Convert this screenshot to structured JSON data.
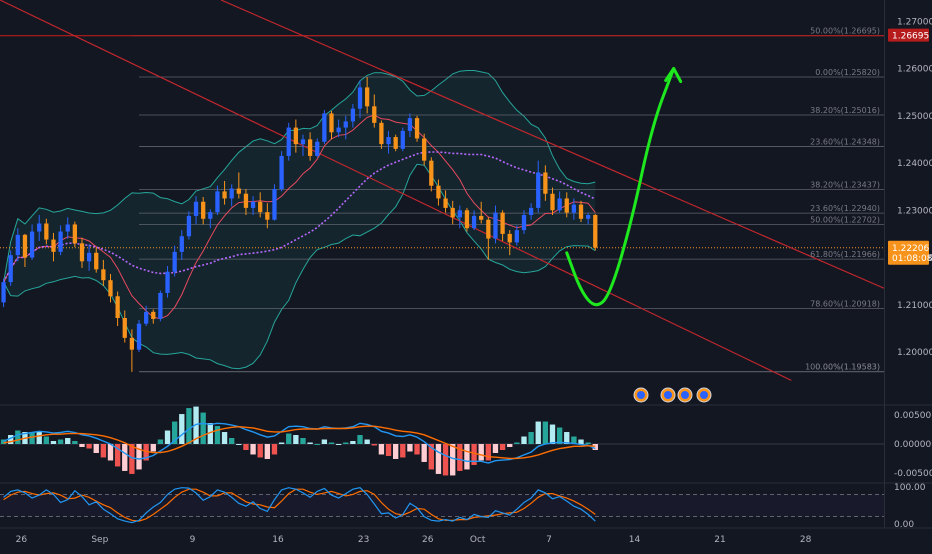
{
  "colors": {
    "background": "#131722",
    "grid": "#2a2e39",
    "candle_up": "#2962ff",
    "candle_down": "#f7931a",
    "bollinger": "#26a69a",
    "bollinger_fill": "rgba(38,166,154,0.10)",
    "ma_fast": "#e84a5f",
    "ma_slow": "#b668ff",
    "channel": "#c0272d",
    "resistance": "#b71c1c",
    "arrow": "#1ee81e",
    "fib_line": "#787b86",
    "macd_line": "#2196f3",
    "signal_line": "#ff6d00",
    "hist_pos": "#b2ebf2",
    "hist_neg": "#ffcdd2",
    "stoch_k": "#2196f3",
    "stoch_d": "#ff6d00",
    "current_price_bg": "#f7931a",
    "resistance_label_bg": "#b71c1c"
  },
  "icons": [
    "event-flag-icon",
    "us-flag-icon",
    "earnings-icon"
  ],
  "chart_data": [
    {
      "type": "candlestick",
      "name": "price",
      "ylim": [
        1.189,
        1.2745
      ],
      "y_ticks": [
        "1.27000",
        "1.26000",
        "1.25000",
        "1.24000",
        "1.23000",
        "1.22000",
        "1.21000",
        "1.20000"
      ],
      "x_range": [
        0,
        124
      ],
      "x_ticks": [
        {
          "label": "26",
          "x": 3
        },
        {
          "label": "Sep",
          "x": 14
        },
        {
          "label": "9",
          "x": 27
        },
        {
          "label": "16",
          "x": 39
        },
        {
          "label": "23",
          "x": 51
        },
        {
          "label": "26",
          "x": 60
        },
        {
          "label": "Oct",
          "x": 67
        },
        {
          "label": "7",
          "x": 77
        },
        {
          "label": "14",
          "x": 89
        },
        {
          "label": "21",
          "x": 101
        },
        {
          "label": "28",
          "x": 113
        }
      ],
      "current_price": {
        "value": 1.22206,
        "label": "1.22206",
        "countdown": "01:08:08"
      },
      "resistance": {
        "value": 1.26695,
        "label": "1.26695"
      },
      "fib_levels": [
        {
          "label": "50.00%(1.26695)",
          "value": 1.26695,
          "x_from": 18
        },
        {
          "label": "0.00%(1.25820)",
          "value": 1.2582,
          "x_from": 19
        },
        {
          "label": "38.20%(1.25016)",
          "value": 1.25016,
          "x_from": 19
        },
        {
          "label": "23.60%(1.24348)",
          "value": 1.24348,
          "x_from": 19
        },
        {
          "label": "38.20%(1.23437)",
          "value": 1.23437,
          "x_from": 19
        },
        {
          "label": "23.60%(1.22940)",
          "value": 1.2294,
          "x_from": 19
        },
        {
          "label": "50.00%(1.22702)",
          "value": 1.22702,
          "x_from": 19
        },
        {
          "label": "61.80%(1.21966)",
          "value": 1.21966,
          "x_from": 19
        },
        {
          "label": "78.60%(1.20918)",
          "value": 1.20918,
          "x_from": 19
        },
        {
          "label": "0.00%(1.19583)",
          "value": 1.19583,
          "x_from": 19
        },
        {
          "label": "100.00%(1.19583)",
          "value": 1.19583,
          "x_from": 19
        }
      ],
      "channel_lines": [
        {
          "from": [
            31,
            1.2745
          ],
          "to": [
            124,
            1.2135
          ]
        },
        {
          "from": [
            0,
            1.2745
          ],
          "to": [
            111,
            1.194
          ]
        }
      ],
      "projection": [
        [
          79,
          1.221
        ],
        [
          81,
          1.2128
        ],
        [
          83,
          1.2093
        ],
        [
          85,
          1.2118
        ],
        [
          88,
          1.227
        ],
        [
          91,
          1.248
        ],
        [
          94,
          1.26
        ]
      ],
      "candles": [
        [
          1.2105,
          1.2155,
          1.2095,
          1.2148
        ],
        [
          1.2148,
          1.2215,
          1.214,
          1.2205
        ],
        [
          1.2205,
          1.2262,
          1.2192,
          1.2248
        ],
        [
          1.2248,
          1.225,
          1.218,
          1.22
        ],
        [
          1.22,
          1.227,
          1.2195,
          1.2255
        ],
        [
          1.2255,
          1.229,
          1.2235,
          1.2272
        ],
        [
          1.2272,
          1.2282,
          1.2228,
          1.2238
        ],
        [
          1.2238,
          1.2252,
          1.2192,
          1.2212
        ],
        [
          1.2212,
          1.2268,
          1.2205,
          1.2255
        ],
        [
          1.2255,
          1.2285,
          1.224,
          1.227
        ],
        [
          1.227,
          1.2276,
          1.2222,
          1.223
        ],
        [
          1.223,
          1.2242,
          1.2178,
          1.2192
        ],
        [
          1.2192,
          1.2228,
          1.2172,
          1.221
        ],
        [
          1.221,
          1.2222,
          1.2168,
          1.2175
        ],
        [
          1.2175,
          1.2195,
          1.214,
          1.2152
        ],
        [
          1.2152,
          1.2165,
          1.2105,
          1.2118
        ],
        [
          1.2118,
          1.2128,
          1.2055,
          1.2072
        ],
        [
          1.2072,
          1.2088,
          1.202,
          1.203
        ],
        [
          1.203,
          1.2048,
          1.1958,
          1.2005
        ],
        [
          1.2005,
          1.2068,
          1.2,
          1.206
        ],
        [
          1.206,
          1.2098,
          1.2055,
          1.2085
        ],
        [
          1.2085,
          1.209,
          1.206,
          1.207
        ],
        [
          1.207,
          1.213,
          1.2065,
          1.2125
        ],
        [
          1.2125,
          1.2182,
          1.2115,
          1.217
        ],
        [
          1.217,
          1.2225,
          1.216,
          1.2212
        ],
        [
          1.2212,
          1.2258,
          1.2195,
          1.2245
        ],
        [
          1.2245,
          1.2298,
          1.2238,
          1.2288
        ],
        [
          1.2288,
          1.233,
          1.227,
          1.2318
        ],
        [
          1.2318,
          1.2328,
          1.227,
          1.2282
        ],
        [
          1.2282,
          1.2302,
          1.2262,
          1.2296
        ],
        [
          1.2296,
          1.2352,
          1.229,
          1.234
        ],
        [
          1.234,
          1.2362,
          1.2312,
          1.2325
        ],
        [
          1.2325,
          1.2355,
          1.2308,
          1.2346
        ],
        [
          1.2346,
          1.238,
          1.2325,
          1.2335
        ],
        [
          1.2335,
          1.2345,
          1.229,
          1.2305
        ],
        [
          1.2305,
          1.233,
          1.229,
          1.2318
        ],
        [
          1.2318,
          1.2338,
          1.2285,
          1.2296
        ],
        [
          1.2296,
          1.2315,
          1.2262,
          1.228
        ],
        [
          1.228,
          1.2355,
          1.2278,
          1.2345
        ],
        [
          1.2345,
          1.2425,
          1.234,
          1.2415
        ],
        [
          1.2415,
          1.2485,
          1.2405,
          1.2475
        ],
        [
          1.2475,
          1.2492,
          1.2422,
          1.244
        ],
        [
          1.244,
          1.246,
          1.2415,
          1.245
        ],
        [
          1.245,
          1.2465,
          1.2405,
          1.2415
        ],
        [
          1.2415,
          1.2452,
          1.2412,
          1.2445
        ],
        [
          1.2445,
          1.2512,
          1.244,
          1.2505
        ],
        [
          1.2505,
          1.251,
          1.245,
          1.2465
        ],
        [
          1.2465,
          1.2492,
          1.2455,
          1.2475
        ],
        [
          1.2475,
          1.25,
          1.245,
          1.2488
        ],
        [
          1.2488,
          1.2525,
          1.2475,
          1.2515
        ],
        [
          1.2515,
          1.2575,
          1.2495,
          1.256
        ],
        [
          1.256,
          1.2582,
          1.2505,
          1.252
        ],
        [
          1.252,
          1.2545,
          1.2475,
          1.2485
        ],
        [
          1.2485,
          1.249,
          1.243,
          1.244
        ],
        [
          1.244,
          1.2468,
          1.242,
          1.2455
        ],
        [
          1.2455,
          1.246,
          1.2425,
          1.243
        ],
        [
          1.243,
          1.2475,
          1.2425,
          1.2468
        ],
        [
          1.2468,
          1.2505,
          1.2455,
          1.2495
        ],
        [
          1.2495,
          1.25,
          1.2445,
          1.2452
        ],
        [
          1.2452,
          1.2462,
          1.2395,
          1.2405
        ],
        [
          1.2405,
          1.2412,
          1.234,
          1.2352
        ],
        [
          1.2352,
          1.2365,
          1.231,
          1.2325
        ],
        [
          1.2325,
          1.2342,
          1.2295,
          1.2305
        ],
        [
          1.2305,
          1.232,
          1.227,
          1.2285
        ],
        [
          1.2285,
          1.231,
          1.2262,
          1.23
        ],
        [
          1.23,
          1.2305,
          1.2255,
          1.2262
        ],
        [
          1.2262,
          1.23,
          1.2258,
          1.2288
        ],
        [
          1.2288,
          1.2318,
          1.2272,
          1.228
        ],
        [
          1.228,
          1.2285,
          1.2195,
          1.224
        ],
        [
          1.224,
          1.231,
          1.223,
          1.2295
        ],
        [
          1.2295,
          1.23,
          1.2235,
          1.225
        ],
        [
          1.225,
          1.2258,
          1.2205,
          1.2232
        ],
        [
          1.2232,
          1.2268,
          1.2225,
          1.2258
        ],
        [
          1.2258,
          1.23,
          1.225,
          1.229
        ],
        [
          1.229,
          1.2315,
          1.228,
          1.2305
        ],
        [
          1.2305,
          1.2405,
          1.2295,
          1.238
        ],
        [
          1.238,
          1.2395,
          1.232,
          1.2335
        ],
        [
          1.2335,
          1.2348,
          1.229,
          1.23
        ],
        [
          1.23,
          1.234,
          1.2295,
          1.2325
        ],
        [
          1.2325,
          1.2338,
          1.2285,
          1.2295
        ],
        [
          1.2295,
          1.2325,
          1.228,
          1.2312
        ],
        [
          1.2312,
          1.232,
          1.2275,
          1.2282
        ],
        [
          1.2282,
          1.2295,
          1.227,
          1.229
        ],
        [
          1.229,
          1.2292,
          1.2215,
          1.2221
        ]
      ]
    },
    {
      "type": "macd",
      "name": "macd",
      "ylim": [
        -0.0066,
        0.0066
      ],
      "y_ticks": [
        "0.00500",
        "0.00000",
        "-0.00500"
      ],
      "macd": [
        0.0005,
        0.001,
        0.0016,
        0.0018,
        0.002,
        0.0022,
        0.0021,
        0.0019,
        0.002,
        0.0022,
        0.002,
        0.0016,
        0.0014,
        0.001,
        0.0005,
        0.0,
        -0.0008,
        -0.0016,
        -0.0024,
        -0.0026,
        -0.0024,
        -0.002,
        -0.0012,
        -0.0004,
        0.0006,
        0.0016,
        0.0026,
        0.0034,
        0.0036,
        0.0034,
        0.0036,
        0.0035,
        0.0033,
        0.003,
        0.0025,
        0.0021,
        0.0016,
        0.0012,
        0.0014,
        0.0022,
        0.003,
        0.0031,
        0.003,
        0.0027,
        0.0026,
        0.003,
        0.0028,
        0.0027,
        0.0028,
        0.003,
        0.0036,
        0.0034,
        0.003,
        0.0022,
        0.0019,
        0.0014,
        0.0013,
        0.0016,
        0.0012,
        0.0004,
        -0.0006,
        -0.0014,
        -0.002,
        -0.0025,
        -0.0027,
        -0.003,
        -0.003,
        -0.003,
        -0.0033,
        -0.0029,
        -0.0028,
        -0.0027,
        -0.0024,
        -0.0019,
        -0.0014,
        -0.0004,
        0.0,
        0.0002,
        0.0003,
        0.0002,
        0.0001,
        -0.0001,
        -0.0002,
        -0.0008
      ],
      "signal": [
        0.0002,
        0.0004,
        0.0007,
        0.001,
        0.0012,
        0.0014,
        0.0016,
        0.0017,
        0.0017,
        0.0018,
        0.0018,
        0.0018,
        0.0017,
        0.0016,
        0.0014,
        0.0011,
        0.0007,
        0.0002,
        -0.0004,
        -0.0009,
        -0.0013,
        -0.0015,
        -0.0015,
        -0.0013,
        -0.0009,
        -0.0004,
        0.0002,
        0.0009,
        0.0015,
        0.002,
        0.0024,
        0.0027,
        0.0029,
        0.003,
        0.0029,
        0.0028,
        0.0025,
        0.0022,
        0.0021,
        0.0021,
        0.0023,
        0.0025,
        0.0026,
        0.0026,
        0.0026,
        0.0027,
        0.0027,
        0.0027,
        0.0027,
        0.0028,
        0.003,
        0.0031,
        0.0031,
        0.0029,
        0.0027,
        0.0024,
        0.0022,
        0.0021,
        0.0019,
        0.0016,
        0.0011,
        0.0006,
        0.0001,
        -0.0004,
        -0.0009,
        -0.0013,
        -0.0016,
        -0.0019,
        -0.0022,
        -0.0023,
        -0.0024,
        -0.0025,
        -0.0025,
        -0.0024,
        -0.0022,
        -0.0019,
        -0.0015,
        -0.0011,
        -0.0008,
        -0.0006,
        -0.0004,
        -0.0004,
        -0.0003,
        -0.0004
      ]
    },
    {
      "type": "stochastic",
      "name": "stochastic",
      "ylim": [
        -8,
        108
      ],
      "y_ticks": [
        "100.00",
        "0.00"
      ],
      "bands": [
        80,
        20
      ],
      "k": [
        72,
        88,
        92,
        84,
        70,
        78,
        92,
        80,
        58,
        66,
        90,
        74,
        52,
        60,
        40,
        28,
        14,
        8,
        4,
        10,
        30,
        46,
        58,
        80,
        94,
        98,
        97,
        84,
        64,
        74,
        92,
        86,
        72,
        56,
        48,
        60,
        42,
        34,
        66,
        92,
        98,
        94,
        84,
        72,
        88,
        96,
        78,
        70,
        82,
        94,
        98,
        80,
        54,
        28,
        30,
        16,
        26,
        56,
        44,
        20,
        10,
        8,
        12,
        8,
        18,
        12,
        26,
        20,
        18,
        36,
        30,
        24,
        40,
        58,
        70,
        92,
        84,
        68,
        74,
        62,
        48,
        40,
        26,
        8
      ],
      "d": [
        66,
        78,
        86,
        88,
        82,
        78,
        82,
        84,
        78,
        68,
        70,
        78,
        72,
        62,
        52,
        44,
        30,
        18,
        10,
        8,
        14,
        26,
        40,
        54,
        72,
        86,
        94,
        94,
        86,
        76,
        76,
        84,
        84,
        72,
        60,
        54,
        52,
        46,
        44,
        62,
        82,
        94,
        94,
        86,
        80,
        84,
        88,
        82,
        76,
        80,
        88,
        90,
        80,
        58,
        40,
        28,
        24,
        32,
        42,
        40,
        26,
        14,
        10,
        10,
        12,
        12,
        18,
        20,
        22,
        24,
        28,
        30,
        32,
        42,
        56,
        72,
        82,
        82,
        76,
        70,
        62,
        52,
        40,
        26
      ]
    }
  ]
}
